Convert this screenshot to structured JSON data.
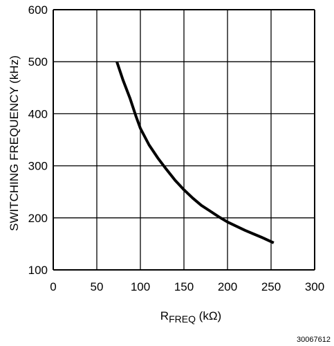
{
  "chart_data": {
    "type": "line",
    "ylabel": "SWITCHING FREQUENCY (kHz)",
    "xlabel": {
      "main": "R",
      "subscript": "FREQ",
      "unit": " (kΩ)"
    },
    "xlim": [
      0,
      300
    ],
    "ylim": [
      100,
      600
    ],
    "x_ticks": [
      0,
      50,
      100,
      150,
      200,
      250,
      300
    ],
    "y_ticks": [
      100,
      200,
      300,
      400,
      500,
      600
    ],
    "x_tick_labels": [
      "0",
      "50",
      "100",
      "150",
      "200",
      "250",
      "300"
    ],
    "y_tick_labels": [
      "100",
      "200",
      "300",
      "400",
      "500",
      "600"
    ],
    "grid": true,
    "series": [
      {
        "color": "#000000",
        "x": [
          73,
          80,
          88,
          95,
          100,
          110,
          120,
          130,
          140,
          150,
          160,
          170,
          180,
          190,
          200,
          210,
          220,
          230,
          240,
          253
        ],
        "y": [
          500,
          465,
          430,
          395,
          372,
          340,
          315,
          293,
          272,
          254,
          238,
          224,
          213,
          202,
          192,
          184,
          176,
          169,
          162,
          152
        ]
      }
    ]
  },
  "figure_id": "30067612"
}
